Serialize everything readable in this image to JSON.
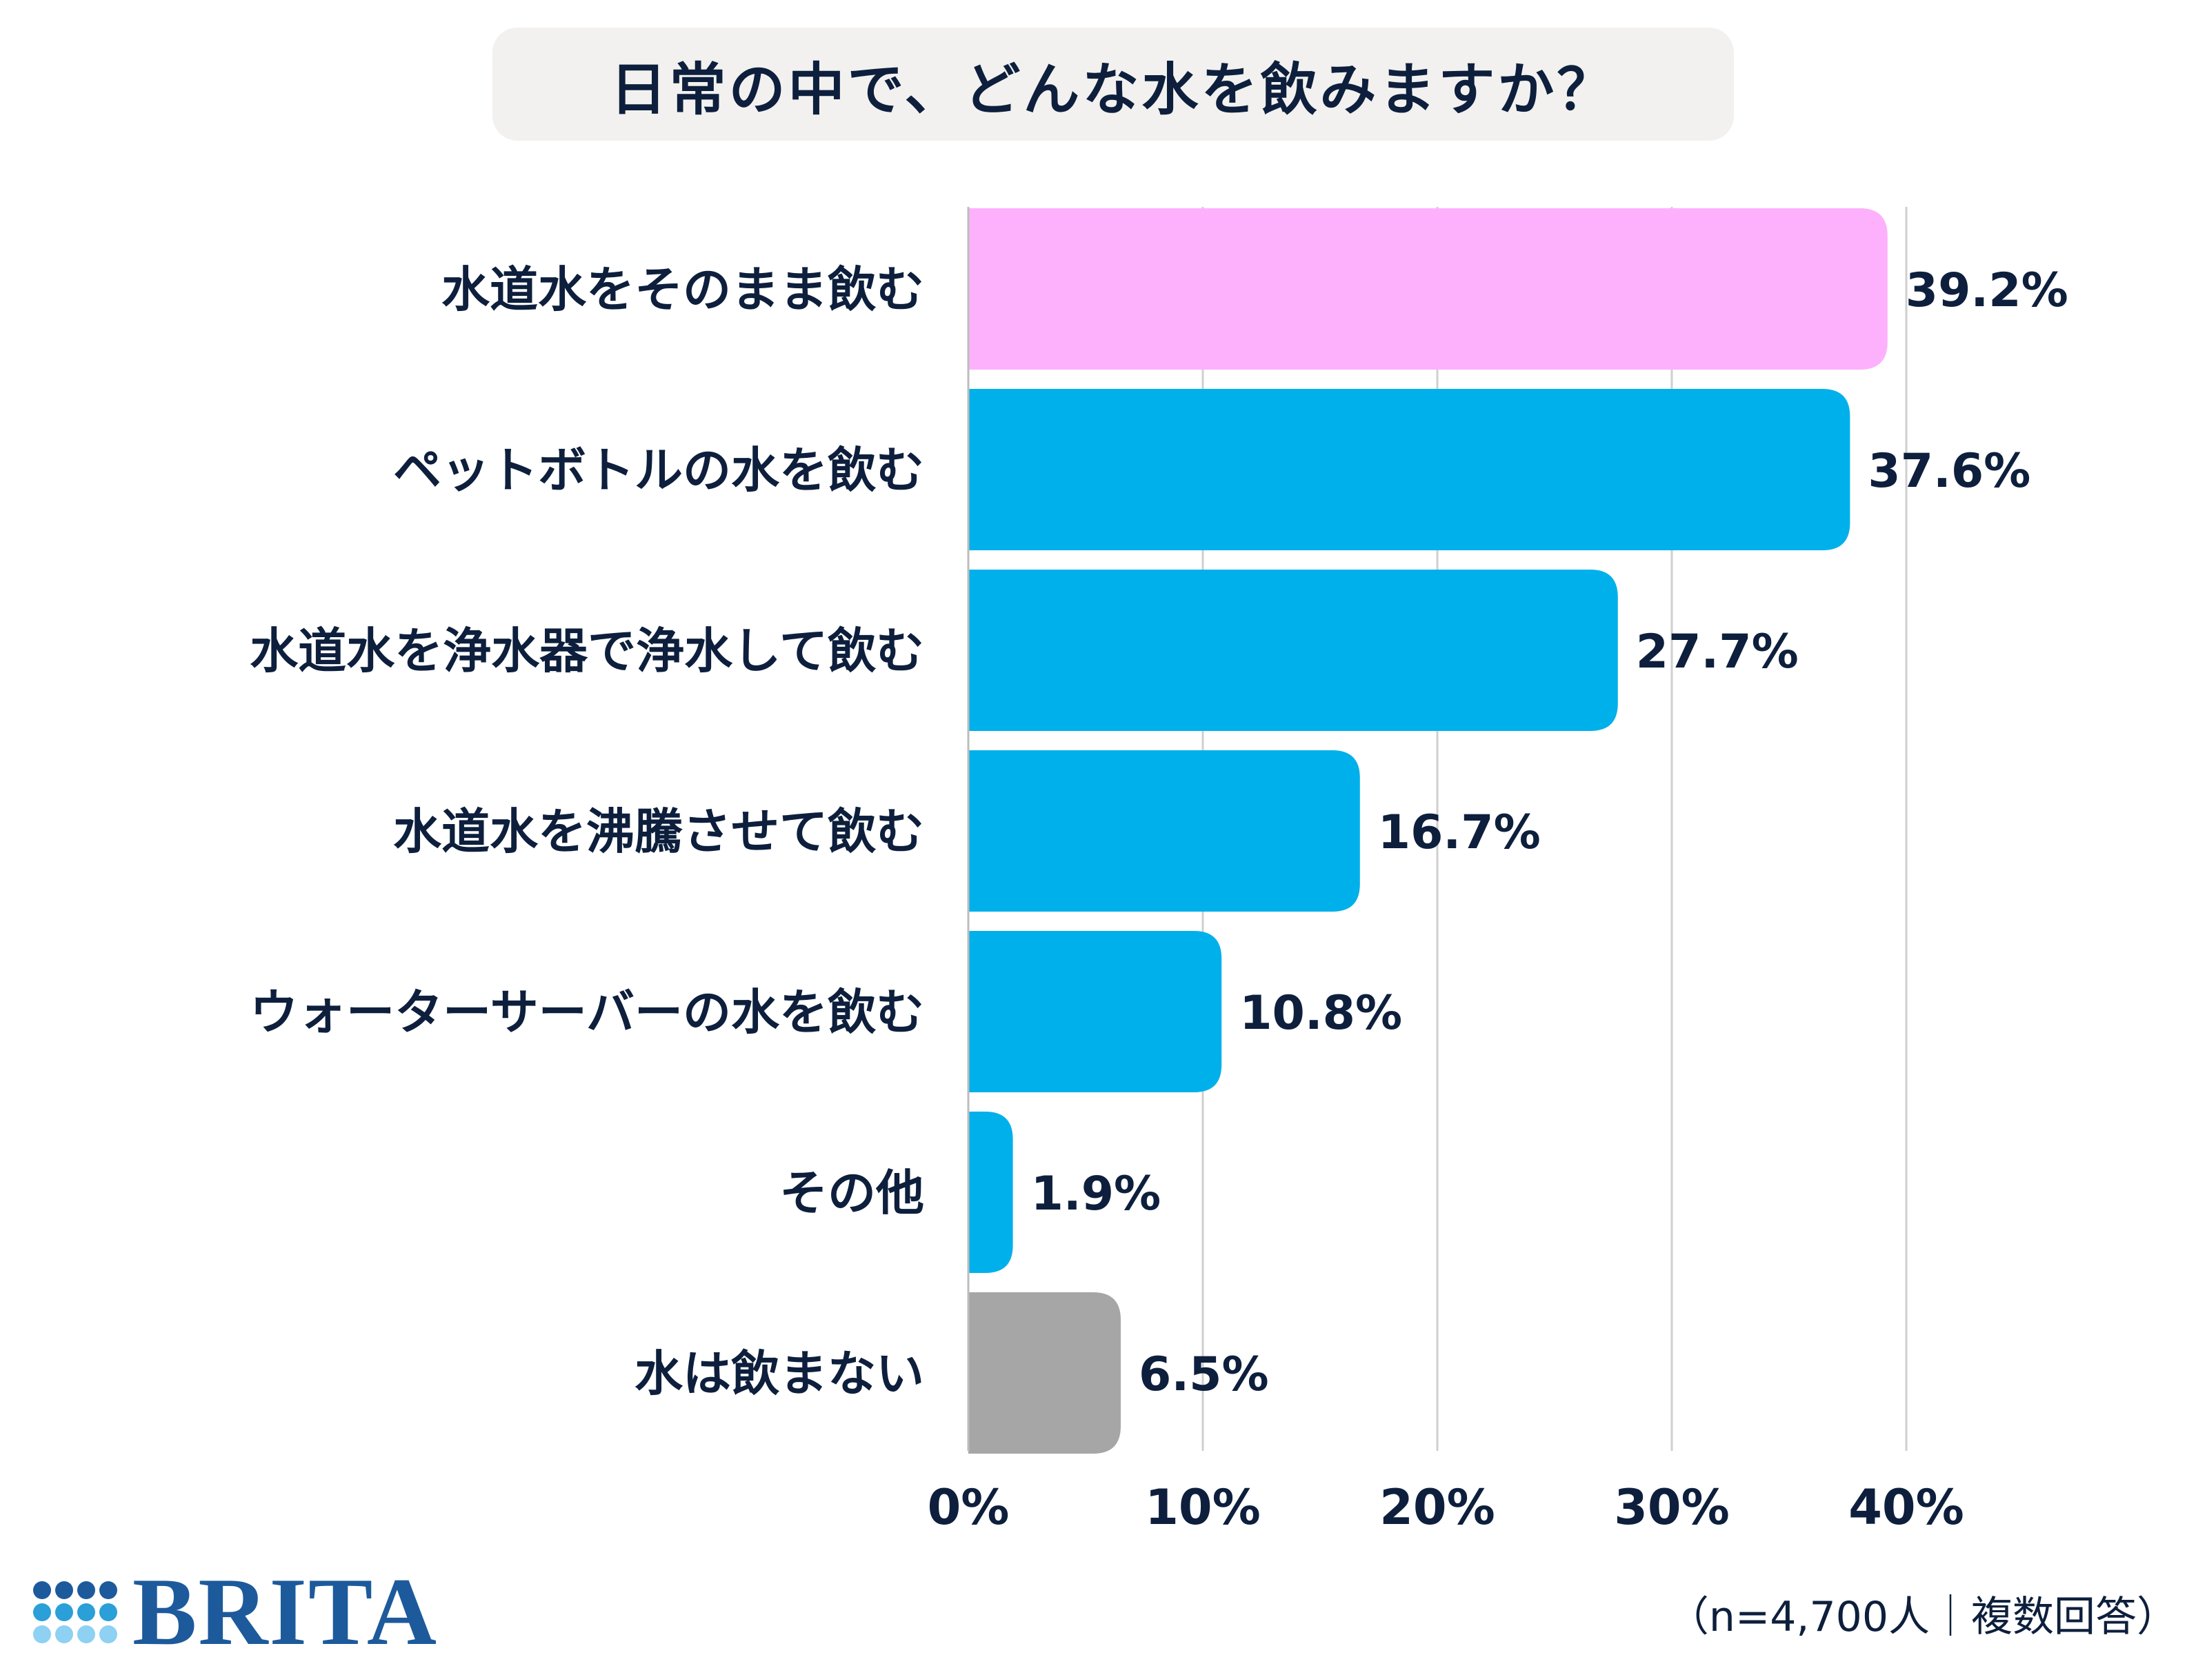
{
  "title": "日常の中で、どんな水を飲みますか？",
  "chart_data": {
    "type": "bar",
    "orientation": "horizontal",
    "title": "日常の中で、どんな水を飲みますか？",
    "categories": [
      "水道水をそのまま飲む",
      "ペットボトルの水を飲む",
      "水道水を浄水器で浄水して飲む",
      "水道水を沸騰させて飲む",
      "ウォーターサーバーの水を飲む",
      "その他",
      "水は飲まない"
    ],
    "values": [
      39.2,
      37.6,
      27.7,
      16.7,
      10.8,
      1.9,
      6.5
    ],
    "value_labels": [
      "39.2%",
      "37.6%",
      "27.7%",
      "16.7%",
      "10.8%",
      "1.9%",
      "6.5%"
    ],
    "bar_colors": [
      "#fdb1fc",
      "#00b0eb",
      "#00b0eb",
      "#00b0eb",
      "#00b0eb",
      "#00b0eb",
      "#a6a6a6"
    ],
    "xlim": [
      0,
      40
    ],
    "xticks": [
      0,
      10,
      20,
      30,
      40
    ],
    "xtick_labels": [
      "0%",
      "10%",
      "20%",
      "30%",
      "40%"
    ],
    "grid": true,
    "xlabel": "",
    "ylabel": ""
  },
  "note": "（n=4,700人｜複数回答）",
  "logo": {
    "text": "BRITA",
    "dot_colors": [
      "#1d5a9c",
      "#1d5a9c",
      "#1d5a9c",
      "#1d5a9c",
      "#2a9fd8",
      "#2a9fd8",
      "#2a9fd8",
      "#2a9fd8",
      "#8ed1f2",
      "#8ed1f2",
      "#8ed1f2",
      "#8ed1f2"
    ]
  }
}
